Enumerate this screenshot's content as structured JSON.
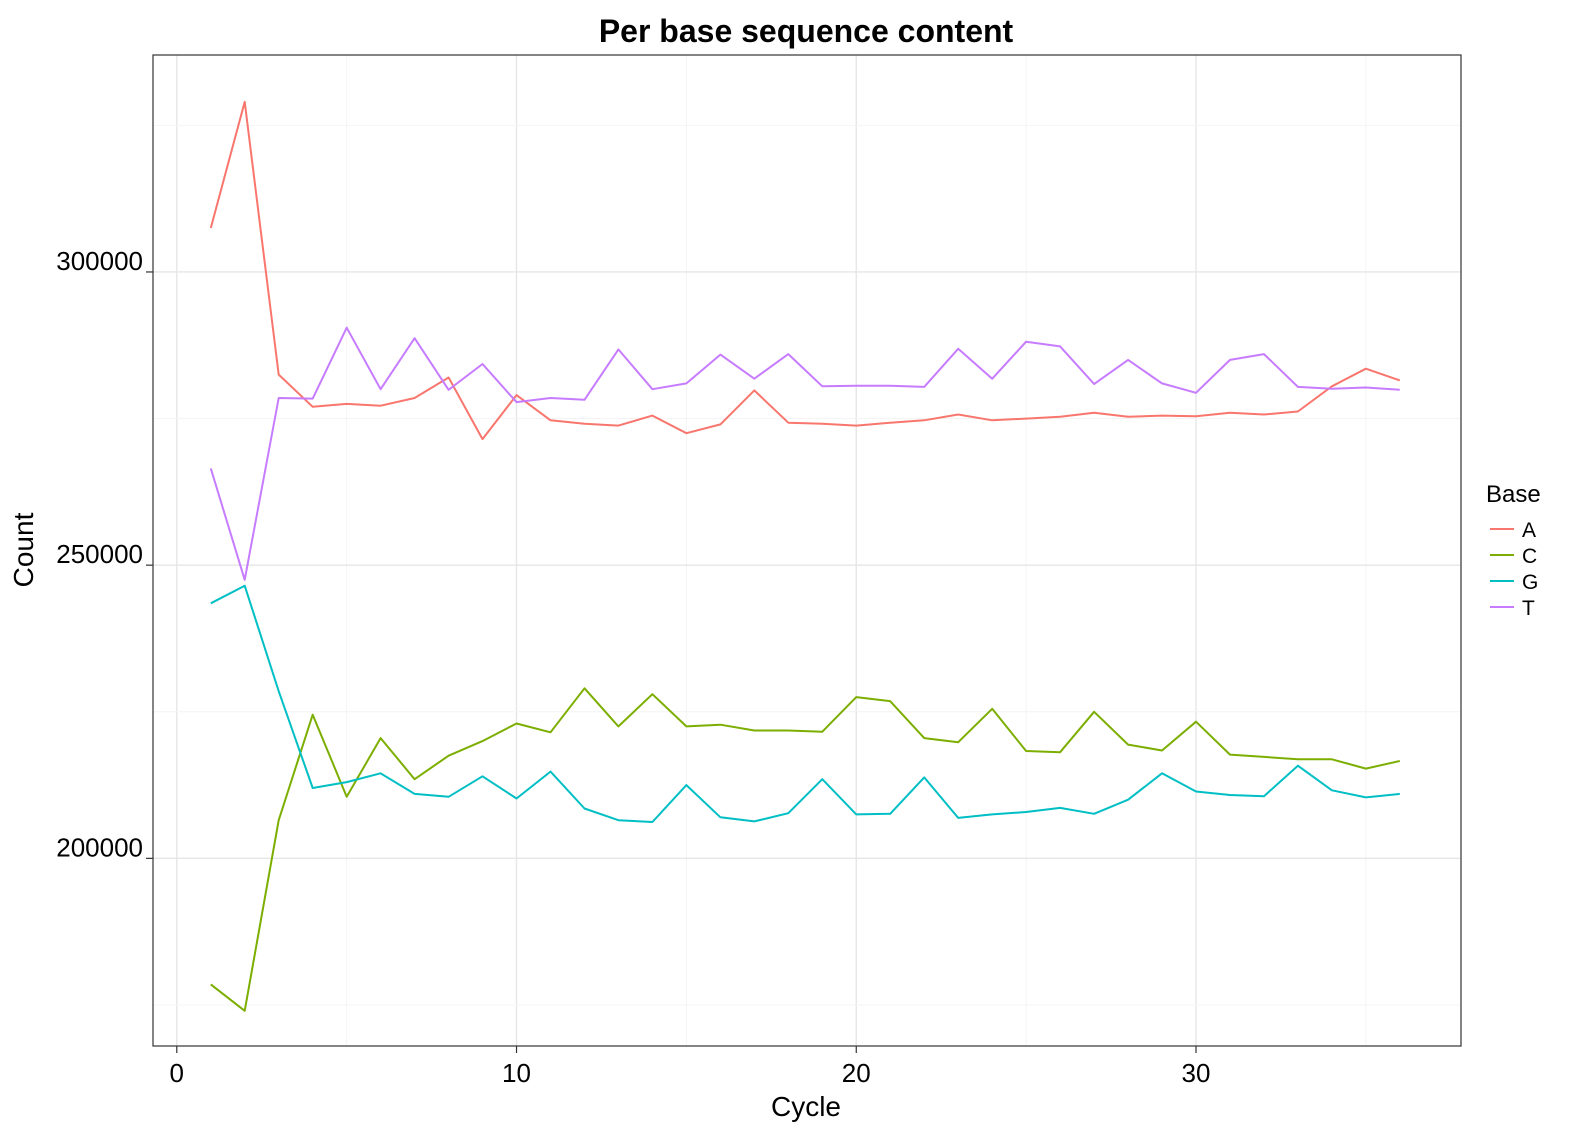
{
  "chart_data": {
    "type": "line",
    "title": "Per base sequence content",
    "xlabel": "Cycle",
    "ylabel": "Count",
    "xlim": [
      -0.7,
      37.8
    ],
    "ylim": [
      168000,
      337000
    ],
    "x_ticks": [
      0,
      10,
      20,
      30
    ],
    "y_ticks": [
      200000,
      250000,
      300000
    ],
    "grid": true,
    "legend_title": "Base",
    "legend_position": "right",
    "x": [
      1,
      2,
      3,
      4,
      5,
      6,
      7,
      8,
      9,
      10,
      11,
      12,
      13,
      14,
      15,
      16,
      17,
      18,
      19,
      20,
      21,
      22,
      23,
      24,
      25,
      26,
      27,
      28,
      29,
      30,
      31,
      32,
      33,
      34,
      35,
      36
    ],
    "series": [
      {
        "name": "A",
        "color": "#F8766D",
        "values": [
          307500,
          329000,
          282500,
          277000,
          277500,
          277200,
          278500,
          282000,
          271500,
          279000,
          274700,
          274100,
          273800,
          275500,
          272500,
          274000,
          279800,
          274300,
          274100,
          273800,
          274300,
          274700,
          275700,
          274700,
          275000,
          275300,
          276000,
          275300,
          275500,
          275400,
          276000,
          275700,
          276200,
          280500,
          283500,
          281500
        ]
      },
      {
        "name": "C",
        "color": "#7CAE00",
        "values": [
          178500,
          174000,
          206500,
          224500,
          210500,
          220500,
          213500,
          217500,
          220000,
          223000,
          221500,
          229000,
          222500,
          228000,
          222500,
          222800,
          221800,
          221800,
          221600,
          227500,
          226800,
          220500,
          219800,
          225500,
          218300,
          218100,
          225000,
          219400,
          218400,
          223300,
          217700,
          217300,
          216900,
          216900,
          215300,
          216600
        ]
      },
      {
        "name": "G",
        "color": "#00BFC4",
        "values": [
          243500,
          246500,
          228500,
          212000,
          213000,
          214500,
          211000,
          210500,
          214000,
          210200,
          214800,
          208500,
          206500,
          206200,
          212500,
          207000,
          206300,
          207700,
          213500,
          207500,
          207600,
          213800,
          206900,
          207500,
          207900,
          208600,
          207600,
          210000,
          214500,
          211400,
          210800,
          210600,
          215800,
          211600,
          210400,
          211000
        ]
      },
      {
        "name": "T",
        "color": "#C77CFF",
        "values": [
          266500,
          247500,
          278500,
          278400,
          290500,
          280000,
          288700,
          279900,
          284300,
          277800,
          278500,
          278200,
          286800,
          280000,
          281000,
          285900,
          281800,
          286000,
          280500,
          280600,
          280600,
          280400,
          286900,
          281800,
          288100,
          287300,
          280900,
          285000,
          281000,
          279400,
          285000,
          286000,
          280400,
          280100,
          280300,
          279900
        ]
      }
    ]
  }
}
